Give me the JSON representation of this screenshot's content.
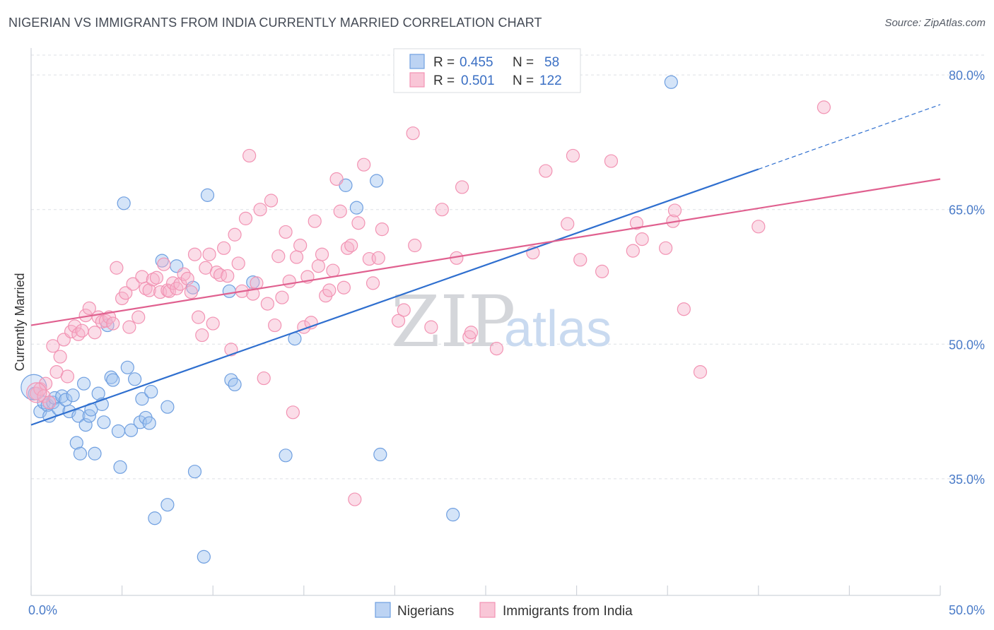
{
  "title": "NIGERIAN VS IMMIGRANTS FROM INDIA CURRENTLY MARRIED CORRELATION CHART",
  "source": "Source: ZipAtlas.com",
  "watermark": {
    "zip": "ZIP",
    "atlas": "atlas"
  },
  "chart_data": {
    "type": "scatter",
    "ylabel": "Currently Married",
    "xlim": [
      0,
      50
    ],
    "ylim": [
      22,
      83
    ],
    "yticks": [
      {
        "value": 80,
        "label": "80.0%"
      },
      {
        "value": 65,
        "label": "65.0%"
      },
      {
        "value": 50,
        "label": "50.0%"
      },
      {
        "value": 35,
        "label": "35.0%"
      }
    ],
    "xtick_labels": {
      "left": "0.0%",
      "right": "50.0%"
    },
    "grid": "horizontal dashed",
    "legend": {
      "placement": "top-center",
      "rows": [
        {
          "r_label": "R = ",
          "r_value": "0.455",
          "n_label": "N = ",
          "n_value": "58"
        },
        {
          "r_label": "R = ",
          "r_value": "0.501",
          "n_label": "N = ",
          "n_value": "122"
        }
      ]
    },
    "series": [
      {
        "name": "Nigerians",
        "color": "#6f9fe0",
        "line_color": "#2f6fcf",
        "trend": {
          "x0": 0,
          "y0": 41,
          "x1": 40,
          "y1": 69.5,
          "dash_to_x": 50,
          "dash_to_y": 76.7
        },
        "points": [
          [
            0.2,
            44.5
          ],
          [
            0.5,
            42.5
          ],
          [
            0.7,
            43.5
          ],
          [
            0.9,
            43.2
          ],
          [
            1.0,
            42.0
          ],
          [
            1.2,
            43.5
          ],
          [
            1.3,
            44.0
          ],
          [
            1.5,
            42.8
          ],
          [
            1.7,
            44.2
          ],
          [
            1.9,
            43.8
          ],
          [
            2.1,
            42.5
          ],
          [
            2.3,
            44.3
          ],
          [
            2.5,
            39.0
          ],
          [
            2.6,
            42.0
          ],
          [
            2.7,
            37.8
          ],
          [
            2.9,
            45.6
          ],
          [
            3.0,
            41.0
          ],
          [
            3.2,
            42.0
          ],
          [
            3.3,
            42.7
          ],
          [
            3.5,
            37.8
          ],
          [
            3.7,
            44.5
          ],
          [
            3.9,
            43.3
          ],
          [
            4.0,
            41.3
          ],
          [
            4.2,
            52.1
          ],
          [
            4.4,
            46.3
          ],
          [
            4.5,
            46.0
          ],
          [
            4.8,
            40.3
          ],
          [
            4.9,
            36.3
          ],
          [
            5.1,
            65.7
          ],
          [
            5.3,
            47.4
          ],
          [
            5.5,
            40.4
          ],
          [
            5.7,
            46.1
          ],
          [
            6.0,
            41.3
          ],
          [
            6.1,
            43.9
          ],
          [
            6.3,
            41.8
          ],
          [
            6.5,
            41.2
          ],
          [
            6.6,
            44.7
          ],
          [
            6.8,
            30.6
          ],
          [
            7.2,
            59.3
          ],
          [
            7.5,
            43.0
          ],
          [
            7.5,
            32.1
          ],
          [
            8.0,
            58.7
          ],
          [
            8.9,
            56.3
          ],
          [
            9.0,
            35.8
          ],
          [
            9.5,
            26.3
          ],
          [
            9.7,
            66.6
          ],
          [
            10.9,
            55.9
          ],
          [
            11.0,
            46.0
          ],
          [
            11.2,
            45.5
          ],
          [
            12.2,
            56.9
          ],
          [
            14.0,
            37.6
          ],
          [
            14.5,
            50.6
          ],
          [
            17.3,
            67.7
          ],
          [
            17.9,
            65.2
          ],
          [
            19.0,
            68.2
          ],
          [
            19.2,
            37.7
          ],
          [
            23.2,
            31.0
          ],
          [
            35.2,
            79.2
          ]
        ]
      },
      {
        "name": "Immigrants from India",
        "color": "#f293b3",
        "line_color": "#e0608f",
        "trend": {
          "x0": 0,
          "y0": 52.1,
          "x1": 50,
          "y1": 68.4
        },
        "points": [
          [
            0.3,
            44.5
          ],
          [
            0.5,
            45.0
          ],
          [
            0.7,
            44.2
          ],
          [
            0.8,
            45.6
          ],
          [
            1.0,
            43.5
          ],
          [
            1.2,
            49.8
          ],
          [
            1.4,
            46.9
          ],
          [
            1.6,
            48.6
          ],
          [
            1.8,
            50.5
          ],
          [
            2.0,
            46.4
          ],
          [
            2.2,
            51.4
          ],
          [
            2.4,
            52.0
          ],
          [
            2.6,
            51.1
          ],
          [
            2.8,
            51.5
          ],
          [
            3.0,
            53.2
          ],
          [
            3.2,
            54.0
          ],
          [
            3.5,
            51.3
          ],
          [
            3.7,
            53.0
          ],
          [
            3.9,
            52.5
          ],
          [
            4.1,
            52.6
          ],
          [
            4.3,
            53.0
          ],
          [
            4.5,
            52.3
          ],
          [
            4.7,
            58.5
          ],
          [
            5.0,
            55.1
          ],
          [
            5.2,
            55.7
          ],
          [
            5.4,
            51.9
          ],
          [
            5.6,
            56.7
          ],
          [
            5.9,
            53.0
          ],
          [
            6.1,
            57.5
          ],
          [
            6.3,
            56.2
          ],
          [
            6.5,
            56.0
          ],
          [
            6.7,
            57.2
          ],
          [
            6.9,
            57.4
          ],
          [
            7.1,
            55.8
          ],
          [
            7.3,
            58.9
          ],
          [
            7.5,
            56.0
          ],
          [
            7.6,
            55.9
          ],
          [
            7.8,
            56.8
          ],
          [
            8.0,
            56.2
          ],
          [
            8.2,
            56.7
          ],
          [
            8.4,
            57.8
          ],
          [
            8.6,
            57.3
          ],
          [
            8.8,
            55.8
          ],
          [
            9.0,
            60.0
          ],
          [
            9.2,
            53.0
          ],
          [
            9.4,
            51.0
          ],
          [
            9.6,
            58.5
          ],
          [
            9.8,
            60.0
          ],
          [
            10.0,
            52.3
          ],
          [
            10.2,
            58.0
          ],
          [
            10.4,
            57.7
          ],
          [
            10.6,
            60.7
          ],
          [
            10.8,
            57.6
          ],
          [
            11.0,
            49.4
          ],
          [
            11.2,
            62.2
          ],
          [
            11.4,
            59.0
          ],
          [
            11.6,
            55.9
          ],
          [
            11.8,
            64.0
          ],
          [
            12.0,
            71.0
          ],
          [
            12.2,
            55.6
          ],
          [
            12.4,
            56.8
          ],
          [
            12.6,
            65.0
          ],
          [
            12.8,
            46.2
          ],
          [
            13.0,
            54.5
          ],
          [
            13.2,
            66.0
          ],
          [
            13.4,
            52.1
          ],
          [
            13.6,
            59.8
          ],
          [
            13.8,
            55.2
          ],
          [
            14.0,
            62.5
          ],
          [
            14.2,
            57.0
          ],
          [
            14.4,
            42.4
          ],
          [
            14.6,
            59.7
          ],
          [
            14.8,
            61.0
          ],
          [
            15.0,
            51.9
          ],
          [
            15.2,
            57.5
          ],
          [
            15.4,
            52.4
          ],
          [
            15.6,
            63.7
          ],
          [
            15.8,
            58.7
          ],
          [
            16.0,
            60.0
          ],
          [
            16.2,
            55.4
          ],
          [
            16.4,
            56.0
          ],
          [
            16.6,
            58.2
          ],
          [
            16.8,
            68.4
          ],
          [
            17.0,
            64.8
          ],
          [
            17.2,
            56.3
          ],
          [
            17.4,
            60.7
          ],
          [
            17.6,
            61.0
          ],
          [
            17.8,
            32.7
          ],
          [
            18.0,
            63.5
          ],
          [
            18.3,
            70.0
          ],
          [
            18.6,
            59.5
          ],
          [
            18.8,
            56.8
          ],
          [
            19.1,
            59.6
          ],
          [
            19.3,
            62.8
          ],
          [
            20.2,
            52.6
          ],
          [
            20.5,
            53.8
          ],
          [
            21.0,
            73.5
          ],
          [
            21.1,
            61.0
          ],
          [
            22.0,
            51.9
          ],
          [
            22.6,
            65.0
          ],
          [
            23.4,
            59.6
          ],
          [
            23.7,
            67.5
          ],
          [
            24.1,
            50.8
          ],
          [
            24.2,
            51.3
          ],
          [
            25.6,
            49.5
          ],
          [
            27.6,
            60.2
          ],
          [
            28.3,
            69.3
          ],
          [
            29.5,
            63.4
          ],
          [
            29.8,
            71.0
          ],
          [
            30.2,
            59.4
          ],
          [
            31.4,
            58.1
          ],
          [
            31.9,
            70.4
          ],
          [
            33.1,
            60.4
          ],
          [
            33.3,
            63.5
          ],
          [
            33.6,
            61.7
          ],
          [
            34.9,
            60.7
          ],
          [
            35.3,
            63.7
          ],
          [
            35.4,
            64.9
          ],
          [
            35.9,
            53.9
          ],
          [
            36.8,
            46.9
          ],
          [
            40.0,
            63.1
          ],
          [
            43.6,
            76.4
          ]
        ]
      }
    ]
  },
  "bottom_legend": [
    {
      "label": "Nigerians"
    },
    {
      "label": "Immigrants from India"
    }
  ]
}
